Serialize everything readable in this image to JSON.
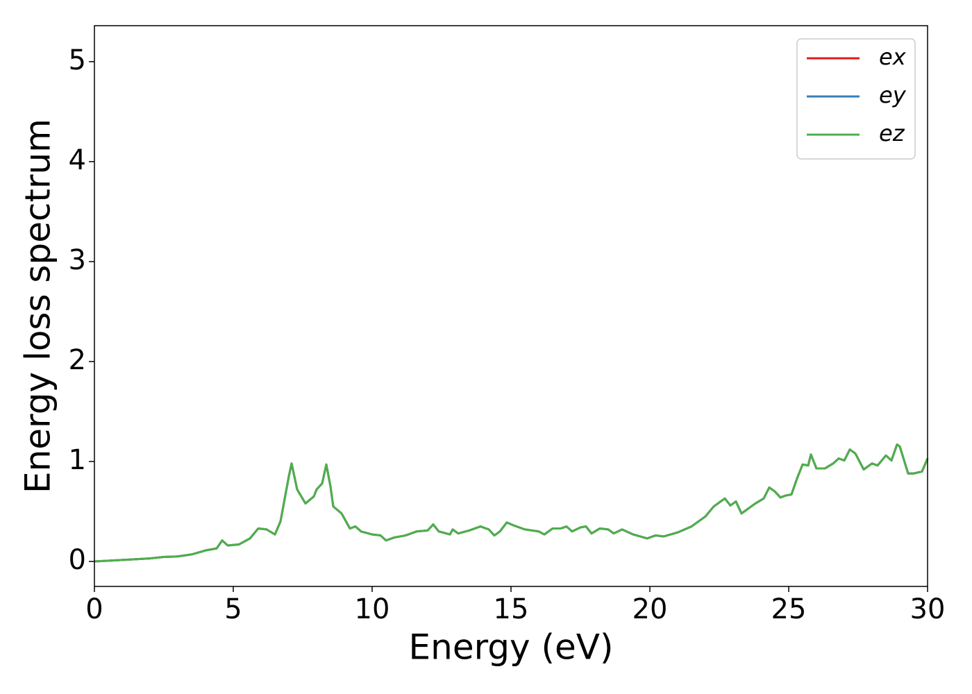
{
  "chart_data": {
    "type": "line",
    "xlabel": "Energy (eV)",
    "ylabel": "Energy loss spectrum",
    "x": [
      0,
      1,
      2,
      2.5,
      3,
      3.5,
      4,
      4.4,
      4.6,
      4.8,
      5.2,
      5.6,
      5.9,
      6.2,
      6.5,
      6.7,
      7.0,
      7.1,
      7.3,
      7.6,
      7.9,
      8.0,
      8.2,
      8.35,
      8.5,
      8.6,
      8.9,
      9.2,
      9.4,
      9.6,
      10,
      10.3,
      10.5,
      10.8,
      11.2,
      11.6,
      12.0,
      12.2,
      12.4,
      12.8,
      12.9,
      13.1,
      13.5,
      13.9,
      14.2,
      14.4,
      14.6,
      14.85,
      15.1,
      15.5,
      16.0,
      16.2,
      16.5,
      16.8,
      17.0,
      17.2,
      17.5,
      17.7,
      17.9,
      18.2,
      18.5,
      18.7,
      19.0,
      19.4,
      19.9,
      20.2,
      20.5,
      21.0,
      21.5,
      22.0,
      22.3,
      22.7,
      22.9,
      23.1,
      23.3,
      23.6,
      23.8,
      24.1,
      24.3,
      24.5,
      24.7,
      24.9,
      25.1,
      25.3,
      25.5,
      25.7,
      25.8,
      26.0,
      26.3,
      26.6,
      26.8,
      27.0,
      27.2,
      27.4,
      27.7,
      28.0,
      28.2,
      28.5,
      28.7,
      28.9,
      29.0,
      29.3,
      29.5,
      29.8,
      30.0
    ],
    "series": [
      {
        "name": "ex",
        "color": "#e41a1c",
        "values": [
          0.0,
          0.015,
          0.03,
          0.045,
          0.05,
          0.07,
          0.11,
          0.13,
          0.21,
          0.16,
          0.17,
          0.23,
          0.33,
          0.32,
          0.27,
          0.4,
          0.85,
          0.98,
          0.72,
          0.58,
          0.65,
          0.72,
          0.78,
          0.97,
          0.75,
          0.55,
          0.48,
          0.33,
          0.35,
          0.3,
          0.27,
          0.26,
          0.21,
          0.24,
          0.26,
          0.3,
          0.31,
          0.37,
          0.3,
          0.27,
          0.32,
          0.28,
          0.31,
          0.35,
          0.32,
          0.26,
          0.3,
          0.39,
          0.36,
          0.32,
          0.3,
          0.27,
          0.33,
          0.33,
          0.35,
          0.3,
          0.34,
          0.35,
          0.28,
          0.33,
          0.32,
          0.28,
          0.32,
          0.27,
          0.23,
          0.26,
          0.25,
          0.29,
          0.35,
          0.45,
          0.55,
          0.63,
          0.56,
          0.6,
          0.48,
          0.54,
          0.58,
          0.63,
          0.74,
          0.7,
          0.64,
          0.66,
          0.67,
          0.83,
          0.97,
          0.96,
          1.07,
          0.93,
          0.93,
          0.98,
          1.03,
          1.01,
          1.12,
          1.08,
          0.92,
          0.98,
          0.96,
          1.06,
          1.01,
          1.17,
          1.15,
          0.88,
          0.88,
          0.9,
          1.03
        ]
      },
      {
        "name": "ey",
        "color": "#377eb8",
        "values": [
          0.0,
          0.015,
          0.03,
          0.045,
          0.05,
          0.07,
          0.11,
          0.13,
          0.21,
          0.16,
          0.17,
          0.23,
          0.33,
          0.32,
          0.27,
          0.4,
          0.85,
          0.98,
          0.72,
          0.58,
          0.65,
          0.72,
          0.78,
          0.97,
          0.75,
          0.55,
          0.48,
          0.33,
          0.35,
          0.3,
          0.27,
          0.26,
          0.21,
          0.24,
          0.26,
          0.3,
          0.31,
          0.37,
          0.3,
          0.27,
          0.32,
          0.28,
          0.31,
          0.35,
          0.32,
          0.26,
          0.3,
          0.39,
          0.36,
          0.32,
          0.3,
          0.27,
          0.33,
          0.33,
          0.35,
          0.3,
          0.34,
          0.35,
          0.28,
          0.33,
          0.32,
          0.28,
          0.32,
          0.27,
          0.23,
          0.26,
          0.25,
          0.29,
          0.35,
          0.45,
          0.55,
          0.63,
          0.56,
          0.6,
          0.48,
          0.54,
          0.58,
          0.63,
          0.74,
          0.7,
          0.64,
          0.66,
          0.67,
          0.83,
          0.97,
          0.96,
          1.07,
          0.93,
          0.93,
          0.98,
          1.03,
          1.01,
          1.12,
          1.08,
          0.92,
          0.98,
          0.96,
          1.06,
          1.01,
          1.17,
          1.15,
          0.88,
          0.88,
          0.9,
          1.03
        ]
      },
      {
        "name": "ez",
        "color": "#4daf4a",
        "values": [
          0.0,
          0.015,
          0.03,
          0.045,
          0.05,
          0.07,
          0.11,
          0.13,
          0.21,
          0.16,
          0.17,
          0.23,
          0.33,
          0.32,
          0.27,
          0.4,
          0.85,
          0.98,
          0.72,
          0.58,
          0.65,
          0.72,
          0.78,
          0.97,
          0.75,
          0.55,
          0.48,
          0.33,
          0.35,
          0.3,
          0.27,
          0.26,
          0.21,
          0.24,
          0.26,
          0.3,
          0.31,
          0.37,
          0.3,
          0.27,
          0.32,
          0.28,
          0.31,
          0.35,
          0.32,
          0.26,
          0.3,
          0.39,
          0.36,
          0.32,
          0.3,
          0.27,
          0.33,
          0.33,
          0.35,
          0.3,
          0.34,
          0.35,
          0.28,
          0.33,
          0.32,
          0.28,
          0.32,
          0.27,
          0.23,
          0.26,
          0.25,
          0.29,
          0.35,
          0.45,
          0.55,
          0.63,
          0.56,
          0.6,
          0.48,
          0.54,
          0.58,
          0.63,
          0.74,
          0.7,
          0.64,
          0.66,
          0.67,
          0.83,
          0.97,
          0.96,
          1.07,
          0.93,
          0.93,
          0.98,
          1.03,
          1.01,
          1.12,
          1.08,
          0.92,
          0.98,
          0.96,
          1.06,
          1.01,
          1.17,
          1.15,
          0.88,
          0.88,
          0.9,
          1.03
        ]
      }
    ],
    "xlim": [
      0,
      30
    ],
    "xticks": [
      0,
      5,
      10,
      15,
      20,
      25,
      30
    ],
    "ylim": [
      -0.25,
      5.36
    ],
    "yticks": [
      0,
      1,
      2,
      3,
      4,
      5
    ],
    "grid": false,
    "legend": "upper right"
  }
}
